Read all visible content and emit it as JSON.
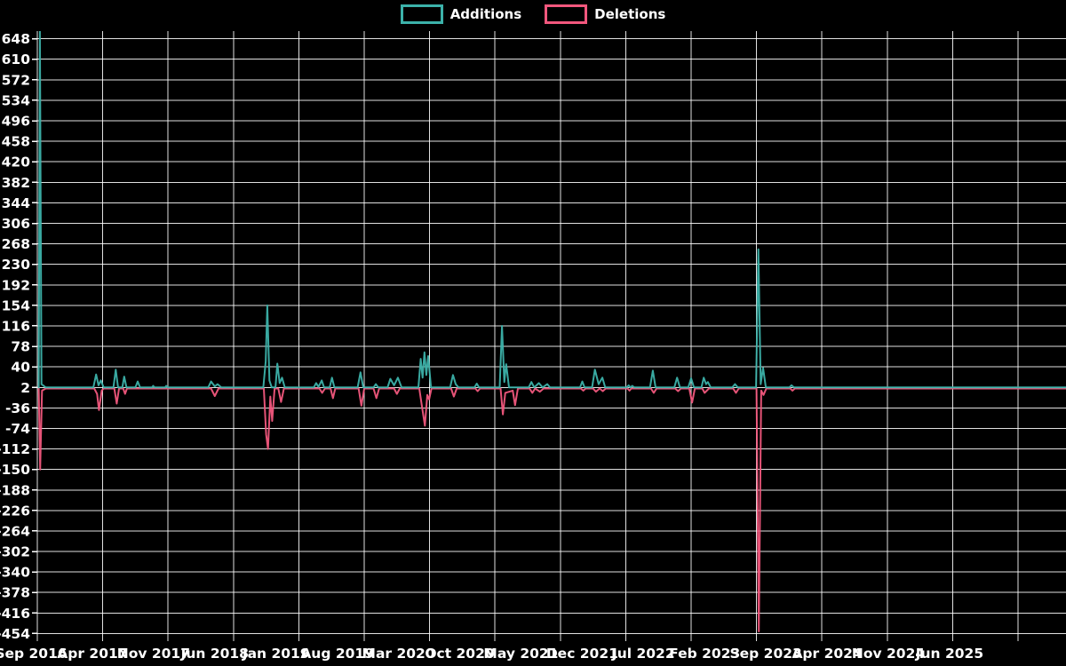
{
  "legend": {
    "items": [
      {
        "label": "Additions",
        "color": "#3cb2aa"
      },
      {
        "label": "Deletions",
        "color": "#f2577d"
      }
    ]
  },
  "chart_data": {
    "type": "line",
    "title": "",
    "xlabel": "",
    "ylabel": "",
    "background_color": "#000000",
    "grid": true,
    "grid_color": "#ffffff",
    "legend_position": "top-center",
    "x_axis": {
      "unit": "months since Sep 2016",
      "tick_labels": [
        "Sep 2016",
        "Apr 2017",
        "Nov 2017",
        "Jun 2018",
        "Jan 2019",
        "Aug 2019",
        "Mar 2020",
        "Oct 2020",
        "May 2021",
        "Dec 2021",
        "Jul 2022",
        "Feb 2023",
        "Sep 2023",
        "Apr 2024",
        "Nov 2024",
        "Jun 2025"
      ],
      "tick_interval_months": 7
    },
    "y_axis": {
      "ticks": [
        648,
        610,
        572,
        534,
        496,
        458,
        420,
        382,
        344,
        306,
        268,
        230,
        192,
        154,
        116,
        78,
        40,
        2,
        -36,
        -74,
        -112,
        -150,
        -188,
        -226,
        -264,
        -302,
        -340,
        -378,
        -416,
        -454
      ],
      "ylim": [
        -462,
        662
      ]
    },
    "points_format": "[months_since_Sep_2016, value]",
    "series": [
      {
        "name": "Additions",
        "color": "#3cb2aa",
        "baseline": 2,
        "points": [
          [
            0.15,
            2
          ],
          [
            0.28,
            662
          ],
          [
            0.45,
            8
          ],
          [
            0.9,
            2
          ],
          [
            6.0,
            2
          ],
          [
            6.3,
            26
          ],
          [
            6.55,
            6
          ],
          [
            6.8,
            15
          ],
          [
            7.1,
            2
          ],
          [
            8.15,
            2
          ],
          [
            8.4,
            35
          ],
          [
            8.65,
            2
          ],
          [
            9.1,
            2
          ],
          [
            9.3,
            22
          ],
          [
            9.55,
            2
          ],
          [
            10.5,
            2
          ],
          [
            10.75,
            13
          ],
          [
            11.0,
            2
          ],
          [
            12.3,
            2
          ],
          [
            12.4,
            5
          ],
          [
            12.55,
            2
          ],
          [
            13.7,
            2
          ],
          [
            13.8,
            5
          ],
          [
            13.95,
            2
          ],
          [
            18.3,
            2
          ],
          [
            18.6,
            13
          ],
          [
            19.0,
            4
          ],
          [
            19.3,
            8
          ],
          [
            19.7,
            2
          ],
          [
            24.2,
            2
          ],
          [
            24.45,
            50
          ],
          [
            24.62,
            154
          ],
          [
            24.85,
            15
          ],
          [
            25.1,
            2
          ],
          [
            25.5,
            2
          ],
          [
            25.7,
            46
          ],
          [
            25.95,
            10
          ],
          [
            26.2,
            20
          ],
          [
            26.5,
            2
          ],
          [
            29.6,
            2
          ],
          [
            29.85,
            10
          ],
          [
            30.1,
            3
          ],
          [
            30.45,
            15
          ],
          [
            30.7,
            2
          ],
          [
            31.3,
            2
          ],
          [
            31.55,
            20
          ],
          [
            31.8,
            2
          ],
          [
            34.3,
            2
          ],
          [
            34.6,
            30
          ],
          [
            34.9,
            2
          ],
          [
            36.0,
            2
          ],
          [
            36.25,
            8
          ],
          [
            36.5,
            2
          ],
          [
            37.5,
            2
          ],
          [
            37.8,
            18
          ],
          [
            38.2,
            6
          ],
          [
            38.6,
            20
          ],
          [
            39.0,
            2
          ],
          [
            40.8,
            2
          ],
          [
            41.05,
            55
          ],
          [
            41.25,
            20
          ],
          [
            41.45,
            67
          ],
          [
            41.65,
            25
          ],
          [
            41.85,
            60
          ],
          [
            42.15,
            2
          ],
          [
            44.2,
            2
          ],
          [
            44.5,
            25
          ],
          [
            44.8,
            8
          ],
          [
            45.1,
            2
          ],
          [
            46.8,
            2
          ],
          [
            47.05,
            9
          ],
          [
            47.3,
            2
          ],
          [
            49.5,
            2
          ],
          [
            49.75,
            116
          ],
          [
            50.0,
            12
          ],
          [
            50.2,
            45
          ],
          [
            50.5,
            2
          ],
          [
            52.6,
            2
          ],
          [
            52.9,
            12
          ],
          [
            53.2,
            2
          ],
          [
            53.7,
            10
          ],
          [
            54.1,
            2
          ],
          [
            54.6,
            8
          ],
          [
            54.9,
            2
          ],
          [
            58.1,
            2
          ],
          [
            58.35,
            13
          ],
          [
            58.6,
            2
          ],
          [
            59.4,
            2
          ],
          [
            59.7,
            35
          ],
          [
            60.1,
            8
          ],
          [
            60.5,
            20
          ],
          [
            60.8,
            2
          ],
          [
            63.1,
            2
          ],
          [
            63.3,
            6
          ],
          [
            63.5,
            2
          ],
          [
            63.7,
            5
          ],
          [
            63.9,
            2
          ],
          [
            65.6,
            2
          ],
          [
            65.9,
            33
          ],
          [
            66.2,
            2
          ],
          [
            68.2,
            2
          ],
          [
            68.5,
            20
          ],
          [
            68.8,
            2
          ],
          [
            69.7,
            2
          ],
          [
            70.0,
            19
          ],
          [
            70.3,
            2
          ],
          [
            71.1,
            2
          ],
          [
            71.35,
            20
          ],
          [
            71.6,
            8
          ],
          [
            71.8,
            12
          ],
          [
            72.1,
            2
          ],
          [
            74.4,
            2
          ],
          [
            74.7,
            8
          ],
          [
            75.0,
            2
          ],
          [
            76.95,
            2
          ],
          [
            77.2,
            258
          ],
          [
            77.45,
            8
          ],
          [
            77.7,
            38
          ],
          [
            78.0,
            2
          ],
          [
            80.5,
            2
          ],
          [
            80.75,
            6
          ],
          [
            81.0,
            2
          ],
          [
            110.2,
            2
          ]
        ]
      },
      {
        "name": "Deletions",
        "color": "#f2577d",
        "baseline": 0,
        "points": [
          [
            0.15,
            0
          ],
          [
            0.3,
            -150
          ],
          [
            0.5,
            -4
          ],
          [
            0.9,
            0
          ],
          [
            6.1,
            0
          ],
          [
            6.4,
            -10
          ],
          [
            6.6,
            -40
          ],
          [
            6.9,
            -4
          ],
          [
            7.1,
            0
          ],
          [
            8.25,
            0
          ],
          [
            8.5,
            -28
          ],
          [
            8.75,
            0
          ],
          [
            9.2,
            0
          ],
          [
            9.4,
            -10
          ],
          [
            9.6,
            0
          ],
          [
            18.6,
            0
          ],
          [
            19.0,
            -14
          ],
          [
            19.4,
            0
          ],
          [
            24.25,
            0
          ],
          [
            24.5,
            -85
          ],
          [
            24.7,
            -112
          ],
          [
            24.95,
            -15
          ],
          [
            25.15,
            -60
          ],
          [
            25.4,
            0
          ],
          [
            25.8,
            0
          ],
          [
            26.1,
            -25
          ],
          [
            26.4,
            0
          ],
          [
            30.2,
            0
          ],
          [
            30.5,
            -8
          ],
          [
            30.8,
            0
          ],
          [
            31.4,
            0
          ],
          [
            31.65,
            -18
          ],
          [
            31.9,
            0
          ],
          [
            34.4,
            0
          ],
          [
            34.7,
            -32
          ],
          [
            35.0,
            0
          ],
          [
            36.0,
            0
          ],
          [
            36.3,
            -18
          ],
          [
            36.6,
            0
          ],
          [
            38.2,
            0
          ],
          [
            38.5,
            -10
          ],
          [
            38.8,
            0
          ],
          [
            40.9,
            0
          ],
          [
            41.15,
            -30
          ],
          [
            41.5,
            -69
          ],
          [
            41.75,
            -12
          ],
          [
            41.95,
            -20
          ],
          [
            42.2,
            0
          ],
          [
            44.3,
            0
          ],
          [
            44.6,
            -15
          ],
          [
            44.9,
            0
          ],
          [
            46.9,
            0
          ],
          [
            47.15,
            -5
          ],
          [
            47.4,
            0
          ],
          [
            49.6,
            0
          ],
          [
            49.85,
            -48
          ],
          [
            50.1,
            -8
          ],
          [
            50.9,
            -4
          ],
          [
            51.15,
            -31
          ],
          [
            51.45,
            0
          ],
          [
            52.7,
            0
          ],
          [
            53.0,
            -8
          ],
          [
            53.3,
            0
          ],
          [
            53.8,
            -6
          ],
          [
            54.2,
            0
          ],
          [
            58.2,
            0
          ],
          [
            58.45,
            -4
          ],
          [
            58.7,
            0
          ],
          [
            59.5,
            0
          ],
          [
            59.8,
            -6
          ],
          [
            60.2,
            0
          ],
          [
            60.55,
            -5
          ],
          [
            60.85,
            0
          ],
          [
            63.2,
            0
          ],
          [
            63.4,
            -4
          ],
          [
            63.6,
            0
          ],
          [
            65.7,
            0
          ],
          [
            66.0,
            -8
          ],
          [
            66.3,
            0
          ],
          [
            68.3,
            0
          ],
          [
            68.6,
            -5
          ],
          [
            68.9,
            0
          ],
          [
            69.8,
            0
          ],
          [
            70.1,
            -26
          ],
          [
            70.4,
            0
          ],
          [
            71.2,
            0
          ],
          [
            71.45,
            -8
          ],
          [
            71.9,
            0
          ],
          [
            74.5,
            0
          ],
          [
            74.8,
            -8
          ],
          [
            75.1,
            0
          ],
          [
            77.0,
            0
          ],
          [
            77.25,
            -450
          ],
          [
            77.5,
            -4
          ],
          [
            77.75,
            -12
          ],
          [
            78.05,
            0
          ],
          [
            80.6,
            0
          ],
          [
            80.85,
            -4
          ],
          [
            81.1,
            0
          ],
          [
            110.2,
            0
          ]
        ]
      }
    ]
  }
}
